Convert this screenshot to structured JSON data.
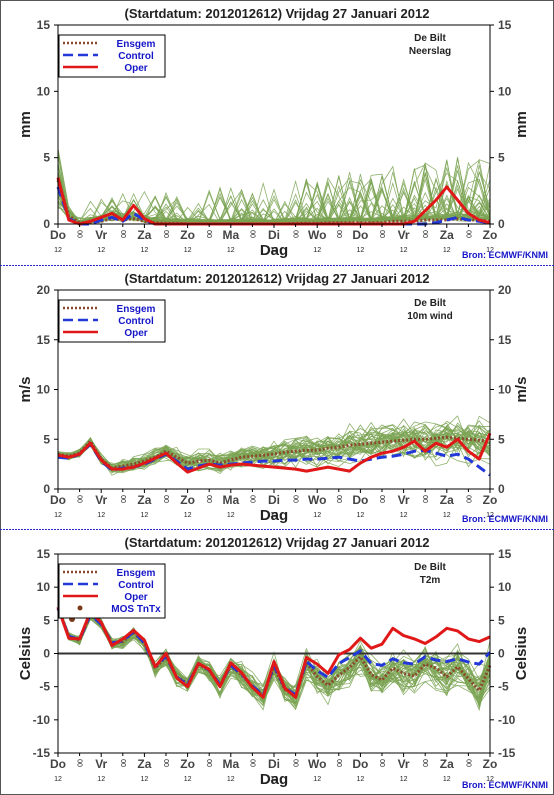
{
  "days": [
    "Do",
    "Vr",
    "Za",
    "Zo",
    "Ma",
    "Di",
    "Wo",
    "Do",
    "Vr",
    "Za",
    "Zo"
  ],
  "hour_marks": [
    "12",
    "00"
  ],
  "colors": {
    "ensemble": "#7aa352",
    "ensgem": "#8b4a2e",
    "control": "#2238d8",
    "oper": "#e01818",
    "frame": "#000000",
    "axis": "#2a2aa0",
    "divider": "#2a2ac8"
  },
  "chart_data": [
    {
      "type": "line",
      "title": "(Startdatum: 2012012612)   Vrijdag   27 Januari   2012",
      "location": "De Bilt",
      "parameter": "Neerslag",
      "ylabel": "mm",
      "xlabel": "Dag",
      "source": "Bron: ECMWF/KNMI",
      "ylim": [
        0,
        15
      ],
      "yticks": [
        0,
        5,
        10,
        15
      ],
      "legend": [
        "Ensgem",
        "Control",
        "Oper"
      ],
      "x_steps": 41,
      "series": [
        {
          "name": "Ensgem",
          "values": [
            3.3,
            0.6,
            0.1,
            0.1,
            0.2,
            0.4,
            0.3,
            0.4,
            0.2,
            0.1,
            0.05,
            0.05,
            0,
            0,
            0,
            0,
            0,
            0,
            0,
            0,
            0,
            0,
            0.05,
            0.05,
            0.05,
            0.1,
            0.1,
            0.1,
            0.1,
            0.1,
            0.1,
            0.2,
            0.2,
            0.2,
            0.3,
            0.3,
            0.3,
            0.4,
            0.3,
            0.3,
            0.2
          ]
        },
        {
          "name": "Control",
          "values": [
            2.8,
            0.4,
            0,
            0,
            0.3,
            0.5,
            0.2,
            0.8,
            0.3,
            0,
            0,
            0,
            0,
            0,
            0,
            0,
            0,
            0,
            0,
            0,
            0,
            0,
            0,
            0,
            0,
            0,
            0,
            0,
            0,
            0,
            0,
            0,
            0,
            0,
            0,
            0.1,
            0.3,
            0.5,
            0.3,
            0.2,
            0.1
          ]
        },
        {
          "name": "Oper",
          "values": [
            3.5,
            0.3,
            0,
            0.2,
            0.5,
            0.8,
            0.3,
            1.4,
            0.4,
            0,
            0,
            0,
            0,
            0,
            0,
            0,
            0,
            0,
            0,
            0,
            0,
            0,
            0,
            0,
            0,
            0,
            0,
            0,
            0,
            0,
            0,
            0,
            0,
            0.2,
            1.0,
            1.8,
            2.8,
            1.8,
            0.8,
            0.3,
            0.1
          ]
        }
      ]
    },
    {
      "type": "line",
      "title": "(Startdatum: 2012012612)   Vrijdag   27 Januari   2012",
      "location": "De Bilt",
      "parameter": "10m wind",
      "ylabel": "m/s",
      "xlabel": "Dag",
      "source": "Bron: ECMWF/KNMI",
      "ylim": [
        0,
        20
      ],
      "yticks": [
        0,
        5,
        10,
        15,
        20
      ],
      "legend": [
        "Ensgem",
        "Control",
        "Oper"
      ],
      "x_steps": 41,
      "series": [
        {
          "name": "Ensgem",
          "values": [
            3.5,
            3.3,
            3.6,
            4.8,
            3.0,
            2.1,
            2.3,
            2.5,
            2.8,
            3.2,
            3.8,
            3.2,
            2.6,
            2.8,
            2.9,
            2.6,
            2.9,
            3.2,
            3.3,
            3.4,
            3.5,
            3.7,
            3.8,
            3.9,
            3.9,
            4.1,
            4.2,
            4.4,
            4.5,
            4.6,
            4.7,
            4.8,
            4.9,
            5.0,
            5.0,
            5.1,
            5.2,
            5.1,
            5.0,
            4.9,
            4.8
          ]
        },
        {
          "name": "Control",
          "values": [
            3.2,
            3.1,
            3.5,
            4.5,
            2.8,
            1.9,
            2.1,
            2.2,
            2.5,
            3.0,
            3.5,
            2.8,
            2.0,
            2.3,
            2.5,
            2.4,
            2.5,
            2.6,
            2.7,
            2.8,
            2.8,
            2.9,
            2.9,
            3.0,
            3.0,
            3.1,
            3.2,
            3.0,
            2.8,
            3.0,
            3.2,
            3.3,
            3.5,
            3.8,
            3.9,
            3.6,
            3.3,
            3.5,
            3.0,
            2.2,
            1.4
          ]
        },
        {
          "name": "Oper",
          "values": [
            3.4,
            3.2,
            3.5,
            4.6,
            2.9,
            2.0,
            2.0,
            2.2,
            2.6,
            3.1,
            3.6,
            2.6,
            1.7,
            2.1,
            2.5,
            2.2,
            2.4,
            2.5,
            2.4,
            2.3,
            2.2,
            2.1,
            2.0,
            1.8,
            2.0,
            2.2,
            2.0,
            1.8,
            2.6,
            3.2,
            3.6,
            3.8,
            4.2,
            4.8,
            3.8,
            4.6,
            4.2,
            5.0,
            3.8,
            3.0,
            5.6
          ]
        }
      ]
    },
    {
      "type": "line",
      "title": "(Startdatum: 2012012612)   Vrijdag   27 Januari   2012",
      "location": "De Bilt",
      "parameter": "T2m",
      "ylabel": "Celsius",
      "xlabel": "Dag",
      "source": "Bron: ECMWF/KNMI",
      "ylim": [
        -15,
        15
      ],
      "yticks": [
        -15,
        -10,
        -5,
        0,
        5,
        10,
        15
      ],
      "legend": [
        "Ensgem",
        "Control",
        "Oper",
        "MOS TnTx"
      ],
      "x_steps": 41,
      "mos": {
        "x": 1.3,
        "y": 5.2
      },
      "series": [
        {
          "name": "Ensgem",
          "values": [
            7.0,
            2.6,
            2.0,
            5.8,
            4.5,
            1.5,
            1.8,
            3.2,
            1.5,
            -2.2,
            -0.5,
            -3.5,
            -4.6,
            -1.6,
            -2.6,
            -4.8,
            -1.9,
            -3.2,
            -5.0,
            -6.4,
            -2.1,
            -5.4,
            -6.4,
            -1.4,
            -3.5,
            -4.8,
            -3.3,
            -2.1,
            -0.5,
            -3.2,
            -4.0,
            -2.2,
            -3.0,
            -3.4,
            -1.6,
            -2.2,
            -3.5,
            -2.0,
            -3.8,
            -5.6,
            -1.8
          ]
        },
        {
          "name": "Control",
          "values": [
            6.8,
            2.6,
            2.1,
            5.9,
            4.4,
            1.6,
            1.9,
            3.3,
            1.6,
            -2.0,
            -0.4,
            -3.6,
            -4.7,
            -1.5,
            -2.5,
            -4.7,
            -1.8,
            -3.1,
            -4.9,
            -6.3,
            -1.8,
            -5.2,
            -6.2,
            -1.2,
            -2.6,
            -3.6,
            -1.5,
            -0.6,
            0.4,
            -1.5,
            -1.8,
            -0.8,
            -1.4,
            -1.6,
            -0.5,
            -1.0,
            -1.2,
            -0.8,
            -1.3,
            -1.6,
            0.2
          ]
        },
        {
          "name": "Oper",
          "values": [
            7.0,
            2.3,
            2.2,
            6.3,
            4.7,
            1.2,
            2.2,
            3.5,
            2.0,
            -2.0,
            0.0,
            -3.7,
            -5.0,
            -1.5,
            -2.4,
            -5.0,
            -1.4,
            -2.9,
            -5.1,
            -6.6,
            -1.2,
            -5.2,
            -6.6,
            -0.6,
            -1.6,
            -3.0,
            -0.2,
            0.6,
            2.3,
            0.8,
            1.4,
            3.8,
            2.7,
            2.2,
            1.5,
            2.5,
            3.8,
            3.4,
            2.2,
            1.8,
            2.5
          ]
        }
      ]
    }
  ]
}
